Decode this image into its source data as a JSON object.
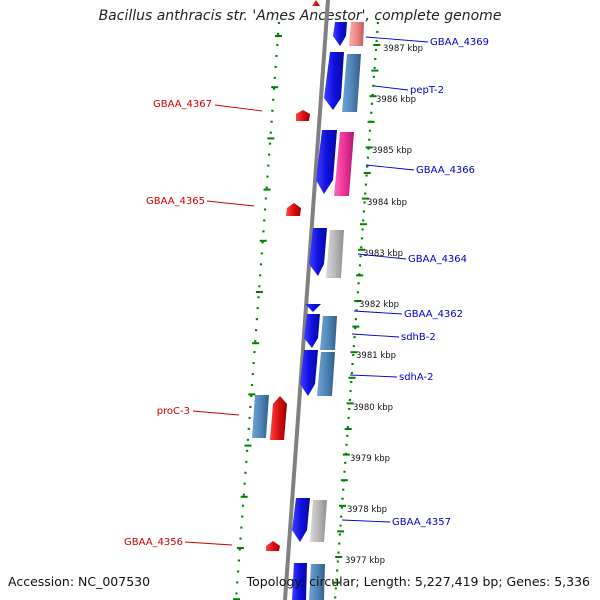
{
  "header": {
    "title": "Bacillus anthracis str. 'Ames Ancestor', complete genome"
  },
  "footer": {
    "accession": "Accession: NC_007530",
    "summary": "Topology: circular; Length: 5,227,419 bp; Genes: 5,336"
  },
  "colors": {
    "forward_cds": "#1010e0",
    "reverse_cds": "#dd1111",
    "steel_cds": "#4f86b8",
    "gray_cds": "#b8b8b8",
    "pink_cds": "#ee3399",
    "salmon_cds": "#ee8888",
    "backbone": "#808080",
    "tick": "#008000",
    "label_forward": "#0000cc",
    "label_reverse": "#cc0000"
  },
  "kbp_labels": [
    "3987 kbp",
    "3986 kbp",
    "3985 kbp",
    "3984 kbp",
    "3983 kbp",
    "3982 kbp",
    "3981 kbp",
    "3980 kbp",
    "3979 kbp",
    "3978 kbp",
    "3977 kbp"
  ],
  "forward_labels": [
    "GBAA_4369",
    "pepT-2",
    "GBAA_4366",
    "GBAA_4364",
    "GBAA_4362",
    "sdhB-2",
    "sdhA-2",
    "GBAA_4357"
  ],
  "reverse_labels": [
    "GBAA_4367",
    "GBAA_4365",
    "proC-3",
    "GBAA_4356"
  ]
}
